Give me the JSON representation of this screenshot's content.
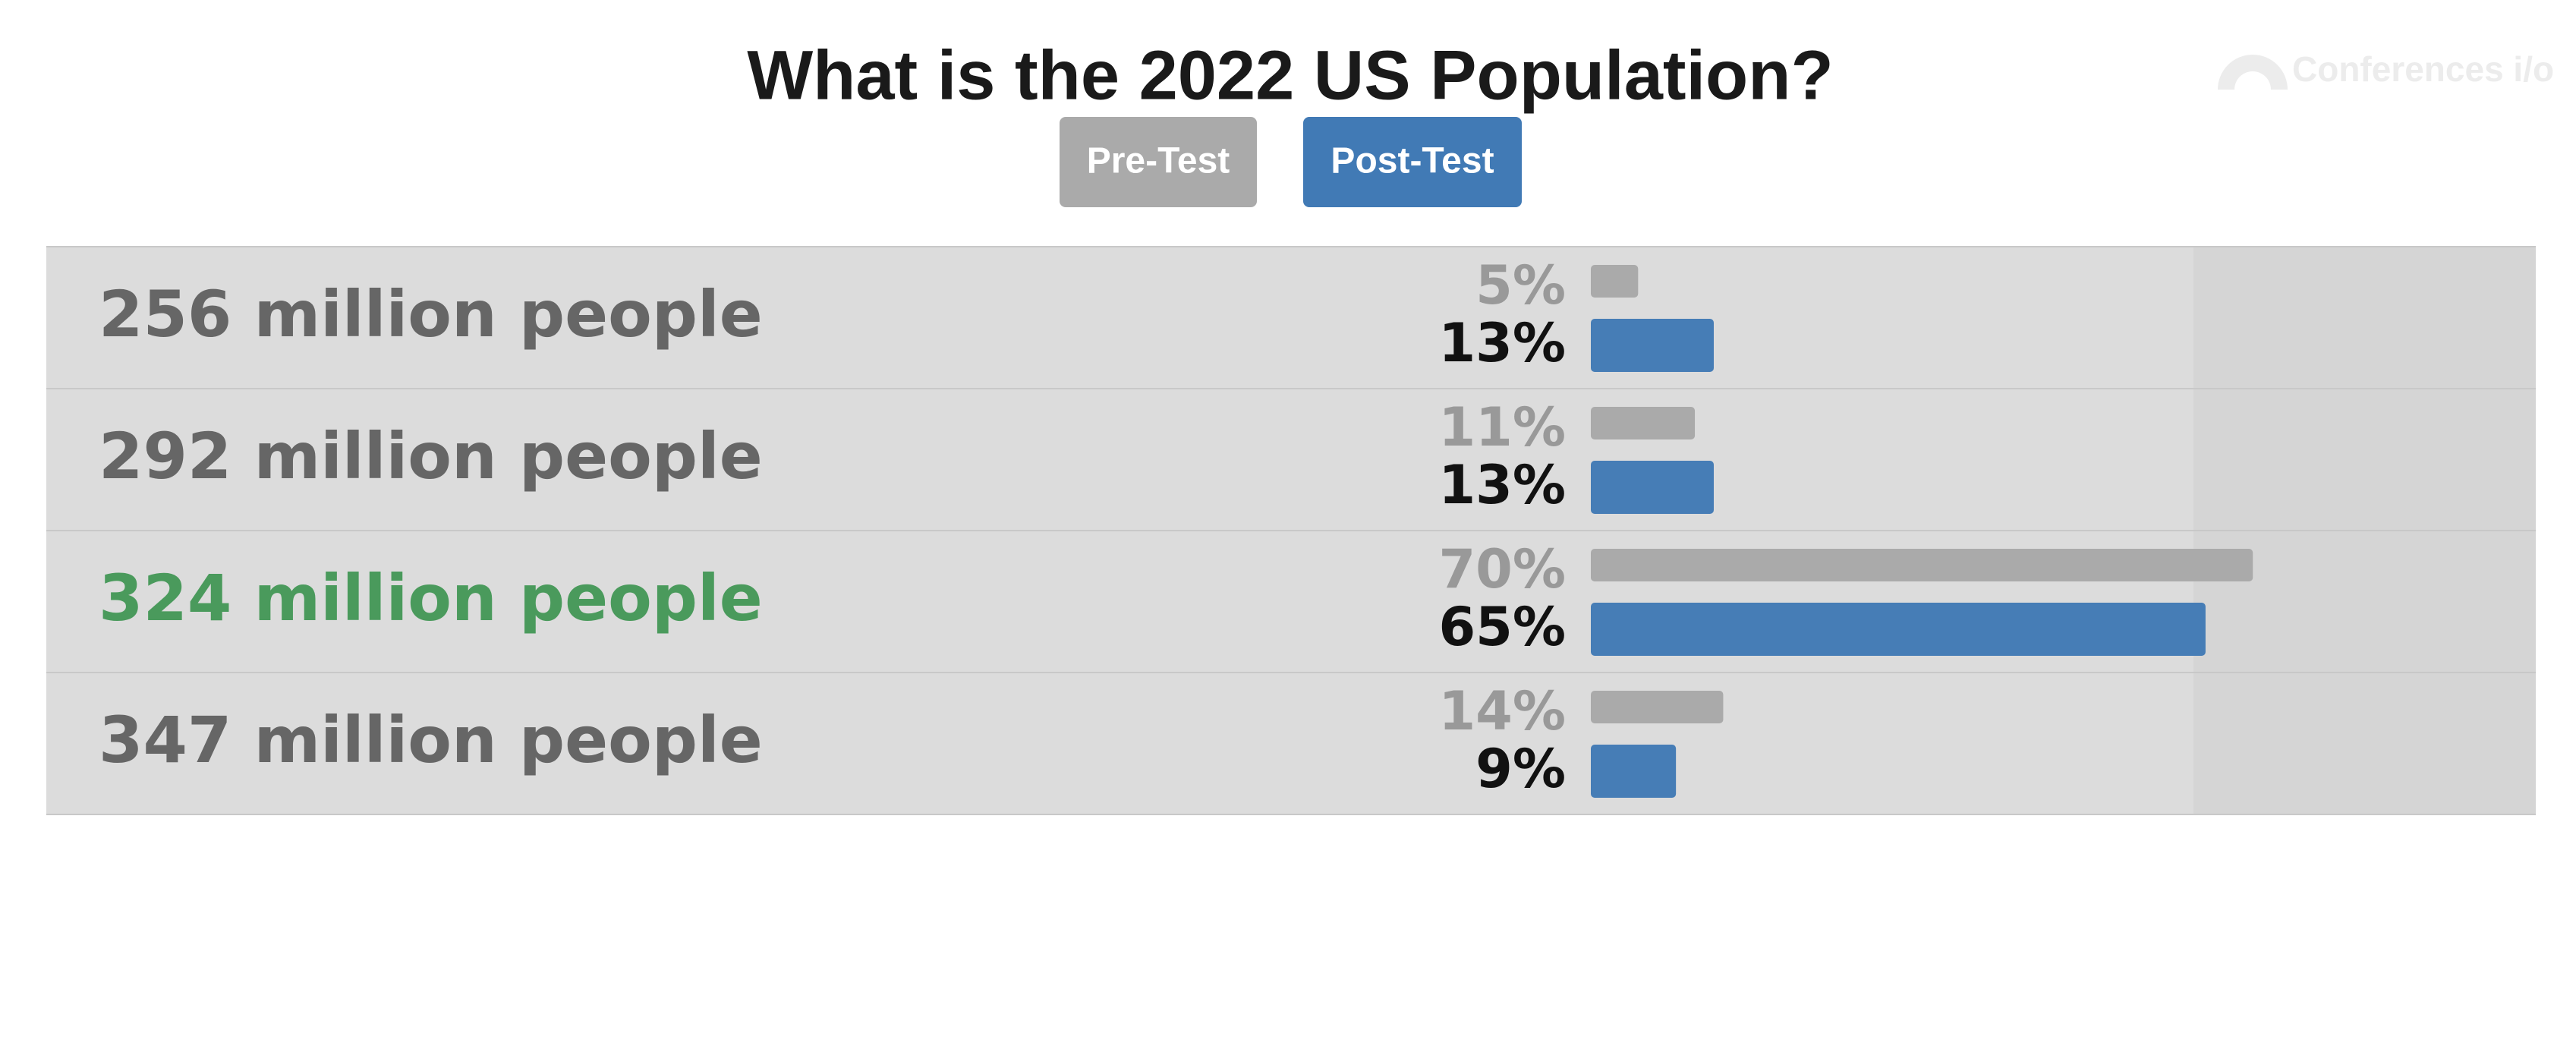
{
  "logo_text": "Conferences i/o",
  "chart_data": {
    "type": "bar",
    "orientation": "horizontal",
    "title": "What is the 2022 US Population?",
    "categories": [
      "256 million people",
      "292 million people",
      "324 million people",
      "347 million people"
    ],
    "category_colors": [
      "#666666",
      "#666666",
      "#4a9a5c",
      "#666666"
    ],
    "series": [
      {
        "name": "Pre-Test",
        "color": "#aaaaaa",
        "label_color": "#999999",
        "values": [
          5,
          11,
          70,
          14
        ],
        "value_labels": [
          "5%",
          "11%",
          "70%",
          "14%"
        ]
      },
      {
        "name": "Post-Test",
        "color": "#417ab5",
        "label_color": "#111111",
        "values": [
          13,
          13,
          65,
          9
        ],
        "value_labels": [
          "13%",
          "13%",
          "65%",
          "9%"
        ]
      }
    ]
  }
}
